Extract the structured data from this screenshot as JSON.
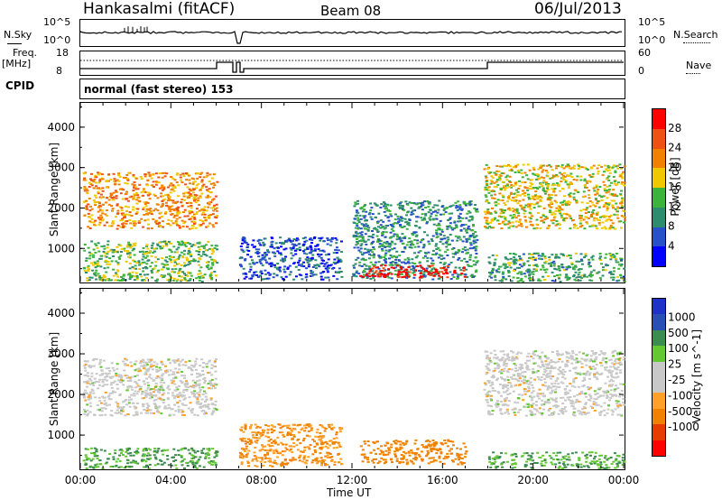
{
  "header": {
    "station": "Hankasalmi (fitACF)",
    "beam": "Beam 08",
    "date": "06/Jul/2013"
  },
  "noise_panel": {
    "left_label": "N.Sky",
    "right_label": "N.Search",
    "left_ticks": [
      "10^5",
      "10^0"
    ],
    "right_ticks": [
      "10^5",
      "10^0"
    ]
  },
  "freq_panel": {
    "left_label": "Freq.",
    "left_unit": "[MHz]",
    "right_label": "Nave",
    "left_ticks": [
      "18",
      "8"
    ],
    "right_ticks": [
      "60",
      "0"
    ]
  },
  "cpid": {
    "label": "CPID",
    "value": "normal (fast stereo) 153"
  },
  "x_axis": {
    "label": "Time UT",
    "ticks": [
      "00:00",
      "04:00",
      "08:00",
      "12:00",
      "16:00",
      "20:00",
      "00:00"
    ]
  },
  "colors": {
    "power": [
      "#0000ff",
      "#2850c8",
      "#2d8c6e",
      "#3cb43c",
      "#f0c800",
      "#f08200",
      "#f05014",
      "#ff0000"
    ],
    "velocity": [
      "#ff0000",
      "#e63c00",
      "#f08200",
      "#ffa028",
      "#c8c8c8",
      "#c8c8c8",
      "#64c832",
      "#3c8c50",
      "#2850b4",
      "#1e32c8"
    ]
  },
  "chart_data": [
    {
      "type": "heatmap",
      "title": "",
      "xlabel": "Time UT",
      "ylabel": "Slant Range [km]",
      "xlim_hours": [
        0,
        24
      ],
      "ylim_km": [
        180,
        4600
      ],
      "y_ticks": [
        1000,
        2000,
        3000,
        4000
      ],
      "colorbar": {
        "label": "Power [dB]",
        "range": [
          0,
          32
        ],
        "ticks": [
          4,
          8,
          12,
          16,
          20,
          24,
          28
        ]
      },
      "echo_regions": [
        {
          "t_start": 0.1,
          "t_end": 6.0,
          "r_start": 1500,
          "r_end": 2900,
          "value": 22
        },
        {
          "t_start": 0.1,
          "t_end": 6.0,
          "r_start": 200,
          "r_end": 1200,
          "value": 14
        },
        {
          "t_start": 7.0,
          "t_end": 11.5,
          "r_start": 250,
          "r_end": 1300,
          "value": 6
        },
        {
          "t_start": 12.0,
          "t_end": 17.5,
          "r_start": 250,
          "r_end": 2200,
          "value": 10
        },
        {
          "t_start": 12.3,
          "t_end": 17.0,
          "r_start": 300,
          "r_end": 600,
          "value": 30
        },
        {
          "t_start": 17.8,
          "t_end": 24.0,
          "r_start": 1500,
          "r_end": 3100,
          "value": 18
        },
        {
          "t_start": 18.0,
          "t_end": 24.0,
          "r_start": 200,
          "r_end": 900,
          "value": 12
        }
      ]
    },
    {
      "type": "heatmap",
      "title": "",
      "xlabel": "Time UT",
      "ylabel": "Slant Range [km]",
      "xlim_hours": [
        0,
        24
      ],
      "ylim_km": [
        180,
        4600
      ],
      "y_ticks": [
        1000,
        2000,
        3000,
        4000
      ],
      "colorbar": {
        "label": "Velocity [m s^-1]",
        "ticks": [
          "1000",
          "500",
          "100",
          "25",
          "-25",
          "-100",
          "-500",
          "-1000"
        ]
      },
      "echo_regions": [
        {
          "t_start": 0.1,
          "t_end": 6.0,
          "r_start": 1500,
          "r_end": 2900,
          "value": 0
        },
        {
          "t_start": 0.1,
          "t_end": 6.0,
          "r_start": 200,
          "r_end": 700,
          "value": 100
        },
        {
          "t_start": 7.0,
          "t_end": 11.5,
          "r_start": 250,
          "r_end": 1300,
          "value": -100
        },
        {
          "t_start": 12.3,
          "t_end": 17.0,
          "r_start": 300,
          "r_end": 900,
          "value": -150
        },
        {
          "t_start": 17.8,
          "t_end": 24.0,
          "r_start": 1500,
          "r_end": 3100,
          "value": 0
        },
        {
          "t_start": 18.0,
          "t_end": 24.0,
          "r_start": 200,
          "r_end": 600,
          "value": 100
        }
      ]
    }
  ]
}
